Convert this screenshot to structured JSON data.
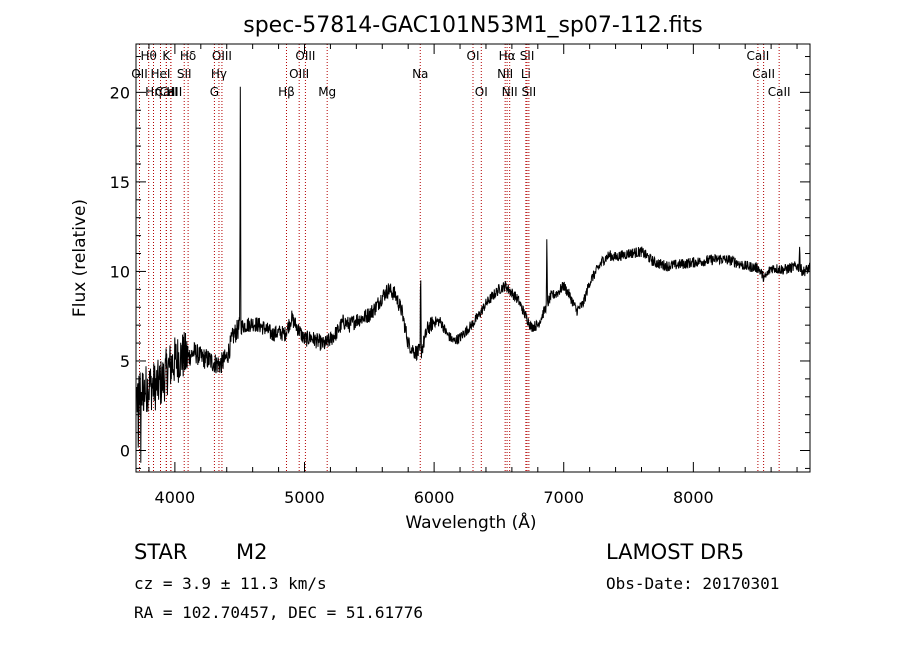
{
  "chart_data": {
    "type": "line",
    "title": "spec-57814-GAC101N53M1_sp07-112.fits",
    "xlabel": "Wavelength (Å)",
    "ylabel": "Flux (relative)",
    "xlim": [
      3700,
      8900
    ],
    "ylim": [
      -1.2,
      22.7
    ],
    "xticks": [
      4000,
      5000,
      6000,
      7000,
      8000
    ],
    "yticks": [
      0,
      5,
      10,
      15,
      20
    ],
    "grid": false,
    "lines": [
      {
        "label": "CaII",
        "wl": 3934,
        "row": 3
      },
      {
        "label": "CaII",
        "wl": 3969,
        "row": 3
      },
      {
        "label": "Hθ",
        "wl": 3798,
        "row": 1
      },
      {
        "label": "OII",
        "wl": 3727,
        "row": 2
      },
      {
        "label": "Hη",
        "wl": 3835,
        "row": 3
      },
      {
        "label": "HeI",
        "wl": 3889,
        "row": 2
      },
      {
        "label": "K",
        "wl": 3934,
        "row": 1
      },
      {
        "label": "H",
        "wl": 3969,
        "row": 3
      },
      {
        "label": "Hδ",
        "wl": 4102,
        "row": 1
      },
      {
        "label": "SII",
        "wl": 4072,
        "row": 2
      },
      {
        "label": "OIII",
        "wl": 4363,
        "row": 1
      },
      {
        "label": "Hγ",
        "wl": 4340,
        "row": 2
      },
      {
        "label": "G",
        "wl": 4305,
        "row": 3
      },
      {
        "label": "OIII",
        "wl": 4959,
        "row": 2
      },
      {
        "label": "OIII",
        "wl": 5007,
        "row": 1
      },
      {
        "label": "Hβ",
        "wl": 4861,
        "row": 3
      },
      {
        "label": "Mg",
        "wl": 5175,
        "row": 3
      },
      {
        "label": "Na",
        "wl": 5893,
        "row": 2
      },
      {
        "label": "OI",
        "wl": 6300,
        "row": 1
      },
      {
        "label": "OI",
        "wl": 6364,
        "row": 3
      },
      {
        "label": "Hα",
        "wl": 6563,
        "row": 1
      },
      {
        "label": "NII",
        "wl": 6548,
        "row": 2
      },
      {
        "label": "NII",
        "wl": 6583,
        "row": 3
      },
      {
        "label": "SII",
        "wl": 6717,
        "row": 1
      },
      {
        "label": "Li",
        "wl": 6708,
        "row": 2
      },
      {
        "label": "SII",
        "wl": 6731,
        "row": 3
      },
      {
        "label": "CaII",
        "wl": 8498,
        "row": 1
      },
      {
        "label": "CaII",
        "wl": 8542,
        "row": 2
      },
      {
        "label": "CaII",
        "wl": 8662,
        "row": 3
      }
    ],
    "spectrum_anchors": [
      [
        3700,
        3.0
      ],
      [
        3750,
        3.3
      ],
      [
        3800,
        3.6
      ],
      [
        3850,
        3.6
      ],
      [
        3900,
        3.8
      ],
      [
        3950,
        4.6
      ],
      [
        4000,
        5.0
      ],
      [
        4050,
        5.3
      ],
      [
        4100,
        5.2
      ],
      [
        4150,
        5.5
      ],
      [
        4200,
        5.2
      ],
      [
        4250,
        5.1
      ],
      [
        4300,
        4.9
      ],
      [
        4350,
        4.8
      ],
      [
        4400,
        5.2
      ],
      [
        4450,
        6.4
      ],
      [
        4500,
        6.9
      ],
      [
        4550,
        7.0
      ],
      [
        4600,
        7.1
      ],
      [
        4650,
        7.0
      ],
      [
        4700,
        6.8
      ],
      [
        4750,
        6.5
      ],
      [
        4800,
        6.6
      ],
      [
        4850,
        6.5
      ],
      [
        4900,
        7.4
      ],
      [
        4950,
        6.8
      ],
      [
        5000,
        6.2
      ],
      [
        5050,
        6.3
      ],
      [
        5100,
        6.1
      ],
      [
        5150,
        5.9
      ],
      [
        5200,
        6.2
      ],
      [
        5250,
        6.6
      ],
      [
        5300,
        7.2
      ],
      [
        5350,
        7.0
      ],
      [
        5400,
        7.3
      ],
      [
        5450,
        7.4
      ],
      [
        5500,
        7.6
      ],
      [
        5550,
        8.0
      ],
      [
        5600,
        8.6
      ],
      [
        5650,
        9.0
      ],
      [
        5700,
        8.7
      ],
      [
        5750,
        7.8
      ],
      [
        5800,
        6.0
      ],
      [
        5850,
        5.5
      ],
      [
        5900,
        5.5
      ],
      [
        5950,
        6.8
      ],
      [
        6000,
        7.2
      ],
      [
        6050,
        7.2
      ],
      [
        6100,
        6.5
      ],
      [
        6150,
        6.1
      ],
      [
        6200,
        6.3
      ],
      [
        6250,
        6.7
      ],
      [
        6300,
        7.1
      ],
      [
        6350,
        7.6
      ],
      [
        6400,
        8.2
      ],
      [
        6450,
        8.6
      ],
      [
        6500,
        9.0
      ],
      [
        6550,
        9.2
      ],
      [
        6600,
        8.8
      ],
      [
        6650,
        8.4
      ],
      [
        6700,
        7.6
      ],
      [
        6750,
        6.9
      ],
      [
        6800,
        7.0
      ],
      [
        6850,
        7.8
      ],
      [
        6900,
        8.6
      ],
      [
        6950,
        8.8
      ],
      [
        7000,
        9.2
      ],
      [
        7050,
        8.6
      ],
      [
        7100,
        7.8
      ],
      [
        7150,
        8.2
      ],
      [
        7200,
        9.4
      ],
      [
        7250,
        10.0
      ],
      [
        7300,
        10.6
      ],
      [
        7350,
        10.9
      ],
      [
        7400,
        10.8
      ],
      [
        7500,
        11.0
      ],
      [
        7600,
        11.1
      ],
      [
        7700,
        10.5
      ],
      [
        7800,
        10.3
      ],
      [
        7900,
        10.4
      ],
      [
        8000,
        10.5
      ],
      [
        8100,
        10.6
      ],
      [
        8200,
        10.7
      ],
      [
        8300,
        10.6
      ],
      [
        8400,
        10.3
      ],
      [
        8500,
        10.2
      ],
      [
        8550,
        9.6
      ],
      [
        8600,
        10.2
      ],
      [
        8700,
        10.1
      ],
      [
        8800,
        10.3
      ],
      [
        8850,
        10.0
      ],
      [
        8900,
        10.2
      ]
    ],
    "spikes": [
      [
        4505,
        21.8
      ],
      [
        5896,
        10.5
      ],
      [
        6870,
        12.2
      ],
      [
        8820,
        11.5
      ]
    ]
  },
  "info": {
    "object_class": "STAR",
    "subclass": "M2",
    "survey": "LAMOST DR5",
    "cz": "cz = 3.9 ± 11.3 km/s",
    "obs_date": "Obs-Date: 20170301",
    "coords": "RA = 102.70457, DEC =  51.61776"
  }
}
